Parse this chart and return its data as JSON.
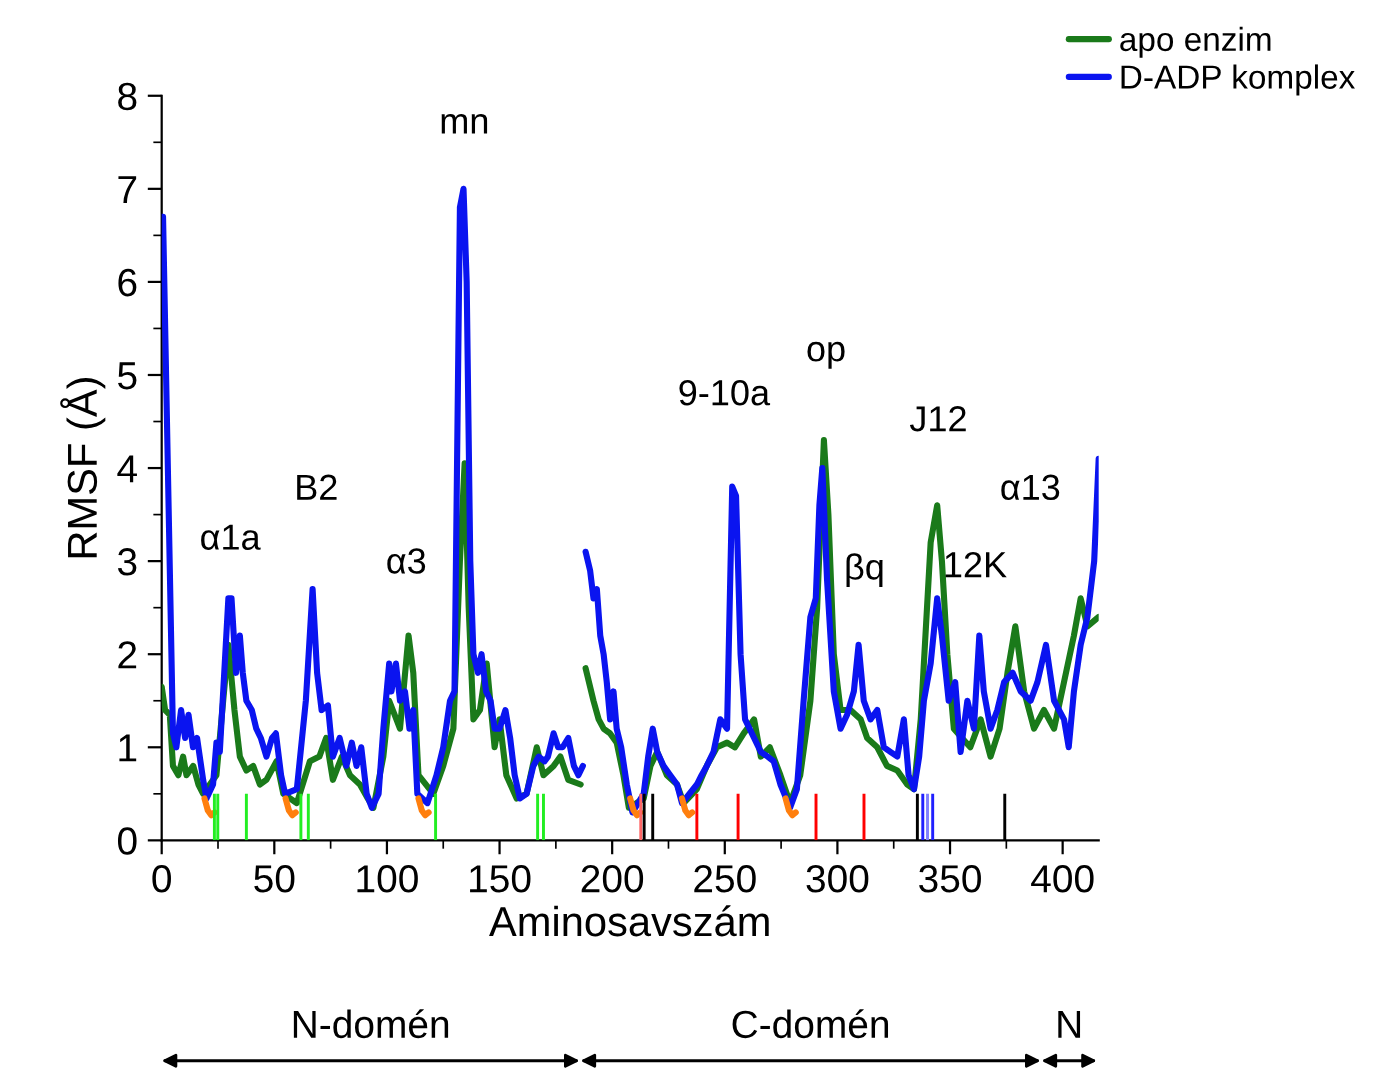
{
  "chart_data": {
    "type": "line",
    "xlabel": "Aminosavszám",
    "ylabel": "RMSF (Å)",
    "xlim": [
      0,
      416
    ],
    "ylim": [
      0,
      8
    ],
    "xticks": [
      0,
      50,
      100,
      150,
      200,
      250,
      300,
      350,
      400
    ],
    "yticks": [
      0,
      1,
      2,
      3,
      4,
      5,
      6,
      7,
      8
    ],
    "grid": false,
    "legend": "top right",
    "marker": "none",
    "line_style": "solid",
    "series": [
      {
        "name": "apo enzim",
        "color": "#1a7a1a",
        "x": [
          0,
          1.5,
          3.6,
          5,
          7.4,
          9.5,
          11,
          14,
          16.3,
          18.4,
          24.3,
          27.3,
          29.6,
          32.3,
          34.7,
          37.6,
          40.6,
          43.6,
          46.5,
          51,
          54,
          60,
          65.8,
          70,
          73,
          76,
          80,
          83.6,
          88,
          91.5,
          94,
          98.4,
          101,
          105.8,
          109.6,
          111.7,
          114,
          120.6,
          125,
          129.5,
          132.4,
          134.5,
          136.3,
          138.4,
          141.3,
          144.3,
          147.8,
          150,
          153,
          157.6,
          162,
          166.5,
          169.5,
          174,
          177,
          180.5,
          186,
          187,
          188.2,
          191.7,
          194,
          196.2,
          199,
          202,
          205,
          207.4,
          214,
          217,
          220,
          224.3,
          228.8,
          231.7,
          237.6,
          242,
          246.5,
          251,
          254.5,
          258.4,
          263,
          266,
          270,
          274.7,
          279,
          283.5,
          288,
          291,
          294,
          296,
          298.4,
          301.4,
          305.8,
          310.3,
          313.2,
          317.7,
          322,
          326.6,
          331,
          334,
          337,
          341.4,
          344.3,
          346.4,
          348.8,
          351.7,
          355.3,
          359,
          363.6,
          368,
          372,
          375.5,
          379,
          382.9,
          387.3,
          391.7,
          396.2,
          400.6,
          405,
          408,
          411,
          416
        ],
        "values": [
          1.65,
          1.4,
          1.35,
          0.8,
          0.7,
          0.9,
          0.7,
          0.8,
          0.6,
          0.5,
          0.7,
          1.5,
          2.1,
          1.4,
          0.9,
          0.75,
          0.8,
          0.6,
          0.65,
          0.85,
          0.5,
          0.4,
          0.85,
          0.9,
          1.1,
          0.65,
          0.9,
          0.7,
          0.6,
          0.45,
          0.35,
          0.9,
          1.5,
          1.2,
          2.2,
          1.8,
          0.7,
          0.5,
          0.8,
          1.2,
          3.0,
          4.05,
          2.5,
          1.3,
          1.4,
          1.9,
          1.0,
          1.3,
          0.7,
          0.45,
          0.5,
          1.0,
          0.7,
          0.8,
          0.9,
          0.65,
          0.6,
          null,
          1.85,
          1.5,
          1.3,
          1.2,
          1.15,
          1.05,
          0.7,
          0.35,
          0.45,
          0.8,
          0.95,
          0.7,
          0.6,
          0.4,
          0.55,
          0.8,
          1.0,
          1.05,
          1.0,
          1.15,
          1.3,
          0.9,
          1.0,
          0.7,
          0.4,
          0.7,
          1.5,
          2.5,
          4.3,
          3.5,
          2.0,
          1.4,
          1.4,
          1.3,
          1.1,
          1.0,
          0.8,
          0.75,
          0.6,
          0.55,
          1.3,
          3.2,
          3.6,
          3.0,
          2.0,
          1.2,
          1.1,
          1.0,
          1.3,
          0.9,
          1.2,
          1.8,
          2.3,
          1.6,
          1.2,
          1.4,
          1.2,
          1.7,
          2.2,
          2.6,
          2.3,
          2.4
        ]
      },
      {
        "name": "D-ADP komplex",
        "color": "#0a14f0",
        "x": [
          0,
          0.6,
          5,
          6.5,
          8.6,
          10.4,
          11.9,
          13.9,
          15.7,
          18.4,
          19.9,
          22.8,
          24.3,
          25.8,
          28,
          29.6,
          31,
          33,
          34.7,
          36,
          37.6,
          40,
          42,
          44,
          46.5,
          49,
          50.7,
          53,
          54.8,
          60,
          64,
          67,
          69,
          71,
          73.8,
          76,
          79,
          82,
          84.4,
          86.5,
          88.6,
          91,
          93.3,
          96.3,
          98.4,
          101,
          102,
          104,
          105.8,
          108,
          110,
          111.7,
          113.5,
          118,
          122,
          125,
          128,
          130,
          132.4,
          134,
          135.4,
          137,
          138.4,
          140.4,
          142,
          144,
          146,
          147.8,
          150,
          152.6,
          154.7,
          156.7,
          159,
          162,
          165,
          167.4,
          170,
          171.5,
          174,
          176,
          178,
          180.5,
          183,
          185,
          187,
          187.5,
          188.2,
          190.2,
          191.7,
          193.2,
          194.7,
          196.2,
          197.6,
          199.1,
          200.6,
          202,
          204,
          206.5,
          209,
          214,
          216,
          218,
          220,
          222.8,
          225.8,
          228.8,
          231,
          237.6,
          239.7,
          242,
          245,
          248,
          251,
          253.3,
          255,
          257,
          259,
          263,
          266,
          269,
          271.7,
          274.7,
          279,
          282,
          285,
          288,
          290.4,
          292,
          293.3,
          295.4,
          298.4,
          301.4,
          304.3,
          307.3,
          309.4,
          311.7,
          314.7,
          317.7,
          320.6,
          323.6,
          326.6,
          329.5,
          331.6,
          334,
          336.3,
          338.4,
          341.4,
          344.3,
          346.4,
          349.4,
          352.3,
          354.7,
          357.7,
          360.6,
          363,
          365,
          368,
          371,
          374,
          377.8,
          381.4,
          385.8,
          388.8,
          392.6,
          396.2,
          400.6,
          402.7,
          405,
          408,
          411,
          414,
          416
        ],
        "values": [
          6.7,
          6.7,
          1.15,
          1.0,
          1.4,
          1.1,
          1.35,
          1.0,
          1.1,
          0.65,
          0.45,
          0.6,
          1.05,
          0.95,
          1.9,
          2.6,
          2.6,
          1.8,
          2.2,
          1.8,
          1.5,
          1.4,
          1.2,
          1.1,
          0.9,
          1.1,
          1.15,
          0.7,
          0.5,
          0.55,
          1.5,
          2.7,
          1.8,
          1.4,
          1.45,
          0.9,
          1.1,
          0.8,
          1.05,
          0.8,
          1.0,
          0.5,
          0.35,
          0.5,
          1.2,
          1.9,
          1.6,
          1.9,
          1.5,
          1.6,
          1.2,
          1.4,
          0.5,
          0.4,
          0.7,
          1.0,
          1.5,
          1.6,
          6.8,
          7.0,
          6.0,
          3.0,
          2.0,
          1.8,
          2.0,
          1.6,
          1.5,
          1.2,
          1.2,
          1.4,
          1.1,
          0.7,
          0.45,
          0.5,
          0.8,
          0.9,
          0.85,
          0.9,
          1.15,
          1.0,
          1.0,
          1.1,
          0.8,
          0.7,
          0.8,
          null,
          3.1,
          2.9,
          2.6,
          2.7,
          2.2,
          2.0,
          1.7,
          1.3,
          1.6,
          1.2,
          1.0,
          0.6,
          0.3,
          0.5,
          0.9,
          1.2,
          0.95,
          0.8,
          0.7,
          0.6,
          0.4,
          0.6,
          0.7,
          0.8,
          0.95,
          1.3,
          1.2,
          3.8,
          3.7,
          2.0,
          1.3,
          1.1,
          0.95,
          0.9,
          0.85,
          0.6,
          0.35,
          0.55,
          1.5,
          2.4,
          2.6,
          3.6,
          4.0,
          2.8,
          1.6,
          1.2,
          1.35,
          1.6,
          2.1,
          1.5,
          1.3,
          1.4,
          1.0,
          0.95,
          0.9,
          1.3,
          0.7,
          0.55,
          0.9,
          1.5,
          1.9,
          2.6,
          2.2,
          1.5,
          1.7,
          0.95,
          1.5,
          1.2,
          2.2,
          1.6,
          1.2,
          1.4,
          1.7,
          1.8,
          1.6,
          1.5,
          1.7,
          2.1,
          1.5,
          1.3,
          1.0,
          1.6,
          2.1,
          2.4,
          3.0,
          4.1
        ]
      },
      {
        "color": "#ff7f0e",
        "type": "line",
        "x": [
          19,
          20.5,
          22,
          23.5,
          null,
          55,
          56.5,
          58,
          59.5,
          null,
          114,
          115.5,
          117,
          118.5,
          null,
          208,
          209.5,
          211,
          212.5,
          null,
          231,
          232.5,
          234,
          235.5,
          null,
          277,
          278.5,
          280,
          281.5
        ],
        "values": [
          0.45,
          0.32,
          0.27,
          0.3,
          null,
          0.45,
          0.32,
          0.27,
          0.3,
          null,
          0.45,
          0.32,
          0.27,
          0.3,
          null,
          0.45,
          0.32,
          0.27,
          0.3,
          null,
          0.45,
          0.32,
          0.27,
          0.3,
          null,
          0.45,
          0.32,
          0.27,
          0.3
        ]
      },
      {
        "type": "bar",
        "x": [
          23.4,
          24.9,
          37.6,
          61.8,
          65.1,
          121.6,
          166.9,
          169.5,
          212.7,
          214.2,
          218,
          237.6,
          255.9,
          290.5,
          311.8,
          335.5,
          337.9,
          340,
          342.3,
          374.3
        ],
        "values": [
          0.5,
          0.5,
          0.5,
          0.5,
          0.5,
          0.5,
          0.5,
          0.5,
          0.5,
          0.5,
          0.5,
          0.5,
          0.5,
          0.5,
          0.5,
          0.5,
          0.5,
          0.5,
          0.5,
          0.5
        ],
        "colors": [
          "#22ee22",
          "#22ee22",
          "#22ee22",
          "#22ee22",
          "#22ee22",
          "#22ee22",
          "#22ee22",
          "#22ee22",
          "#ff6666",
          "#000000",
          "#000000",
          "#ff0000",
          "#ff0000",
          "#ff0000",
          "#ff0000",
          "#000000",
          "#2020ff",
          "#8080ff",
          "#2020ff",
          "#000000"
        ]
      }
    ],
    "annotations": [
      "α1a",
      "B2",
      "α3",
      "mn",
      "9-10a",
      "op",
      "βq",
      "J12",
      "12K",
      "α13",
      "N-domén",
      "C-domén",
      "N"
    ]
  }
}
